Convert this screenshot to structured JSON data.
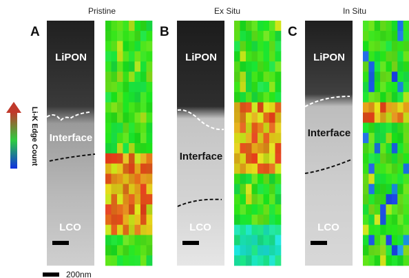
{
  "figure": {
    "panels": [
      {
        "letter": "A",
        "title": "Pristine",
        "top_label": "LiPON",
        "middle_label": "Interface",
        "bottom_label": "LCO"
      },
      {
        "letter": "B",
        "title": "Ex Situ",
        "top_label": "LiPON",
        "middle_label": "Interface",
        "bottom_label": "LCO"
      },
      {
        "letter": "C",
        "title": "In Situ",
        "top_label": "LiPON",
        "middle_label": "Interface",
        "bottom_label": "LCO"
      }
    ],
    "colorbar_label": "Li-K Edge Count",
    "scale_bar_label": "200nm"
  }
}
